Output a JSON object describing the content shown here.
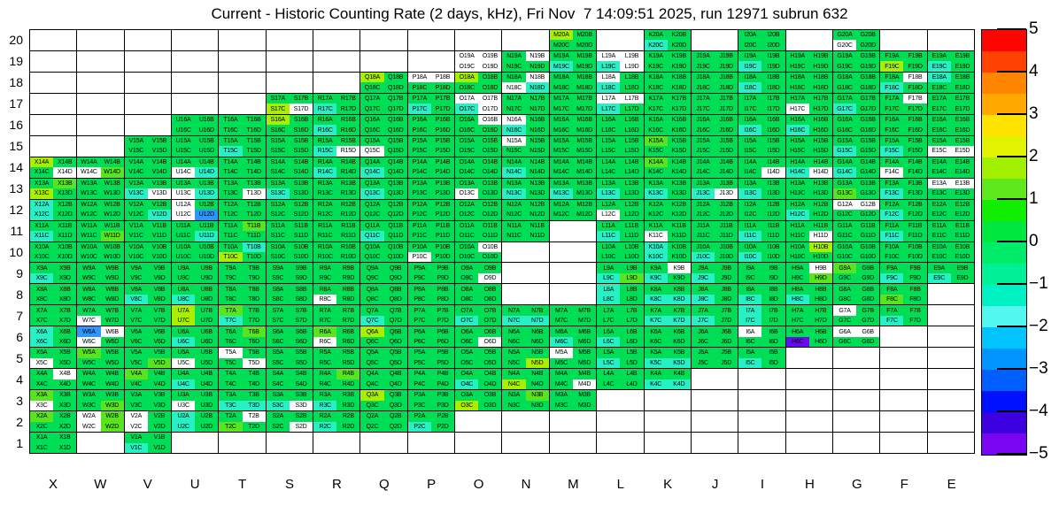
{
  "title": "Current - Historic Counting Rate (2 days, kHz), Fri Nov  7 14:09:51 2025, run 12971 subrun 632",
  "chart_data": {
    "type": "heatmap",
    "title": "Current - Historic Counting Rate (2 days, kHz), Fri Nov  7 14:09:51 2025, run 12971 subrun 632",
    "x_labels": [
      "X",
      "W",
      "V",
      "U",
      "T",
      "S",
      "R",
      "Q",
      "P",
      "O",
      "N",
      "M",
      "L",
      "K",
      "J",
      "I",
      "H",
      "G",
      "F",
      "E"
    ],
    "y_labels": [
      20,
      19,
      18,
      17,
      16,
      15,
      14,
      13,
      12,
      11,
      10,
      9,
      8,
      7,
      6,
      5,
      4,
      3,
      2,
      1
    ],
    "subcell_letters": [
      "A",
      "B",
      "C",
      "D"
    ],
    "grid_on": true,
    "legend_position": "right",
    "value_scale": {
      "min": -5,
      "max": 5,
      "tick_labels": [
        "5",
        "4",
        "3",
        "2",
        "1",
        "0",
        "−1",
        "−2",
        "−3",
        "−4",
        "−5"
      ]
    },
    "colorbar_colors": [
      "#FF0400",
      "#FF4200",
      "#FF8500",
      "#FFA800",
      "#FFE300",
      "#E2F200",
      "#A2F000",
      "#5FE81C",
      "#12EE00",
      "#00E740",
      "#00EB69",
      "#00F095",
      "#00F2C4",
      "#52F7F0",
      "#00C3FF",
      "#0095FF",
      "#0060FF",
      "#0011FF",
      "#3D00E0",
      "#7A05F2"
    ],
    "palette": {
      "G": "#00DE55",
      "L": "#58E51F",
      "Y": "#A9F000",
      "C": "#27F1C4",
      "N": "#2E97FF",
      "P": "#6A0AF0",
      "W": "#FFFFFF"
    },
    "palette_approx_values": {
      "G": 0,
      "L": 1,
      "Y": 2,
      "C": -1.5,
      "N": -3,
      "P": -4.5,
      "W": null
    },
    "rows": [
      {
        "y": 20,
        "cells": [
          "",
          "",
          "",
          "",
          "",
          "",
          "",
          "",
          "",
          "",
          "",
          "YGGG",
          "",
          "GGCG",
          "",
          "GGGG",
          "",
          "GGWG",
          "",
          ""
        ]
      },
      {
        "y": 19,
        "cells": [
          "",
          "",
          "",
          "",
          "",
          "",
          "",
          "",
          "",
          "WWWW",
          "GWGG",
          "GGCG",
          "WWCW",
          "GGGG",
          "GGGG",
          "GGCG",
          "GGGG",
          "GGGG",
          "GGYG",
          "GGCG"
        ]
      },
      {
        "y": 18,
        "cells": [
          "",
          "",
          "",
          "",
          "",
          "",
          "",
          "YGGG",
          "WWGG",
          "YGGG",
          "GWWC",
          "GGGG",
          "WGCG",
          "GGGG",
          "GGGG",
          "GGCG",
          "GGGG",
          "GGGG",
          "GWCG",
          "CGGG"
        ]
      },
      {
        "y": 17,
        "cells": [
          "",
          "",
          "",
          "",
          "",
          "GGYW",
          "GGCG",
          "GGGG",
          "GGCG",
          "WWCW",
          "GGGG",
          "GGGG",
          "WWCG",
          "GGGG",
          "GGGG",
          "GGGG",
          "GGWG",
          "GGCG",
          "GWGG",
          "GGGG"
        ]
      },
      {
        "y": 16,
        "cells": [
          "",
          "",
          "",
          "GGGG",
          "GGGG",
          "YGGG",
          "GGCG",
          "GGGG",
          "GGGG",
          "GWGG",
          "WGCG",
          "GGGG",
          "GGGG",
          "GGGG",
          "GGGG",
          "GGCG",
          "GGCG",
          "GGGG",
          "GGGG",
          "GGGG"
        ]
      },
      {
        "y": 15,
        "cells": [
          "",
          "",
          "GGGG",
          "GGGG",
          "GGCG",
          "GGGG",
          "GGCW",
          "GGWG",
          "GGGG",
          "GGGG",
          "WGGG",
          "GGGG",
          "GGGG",
          "LGGG",
          "GGGG",
          "GGGG",
          "GGGG",
          "GGCG",
          "GGCG",
          "GGWW"
        ]
      },
      {
        "y": 14,
        "cells": [
          "YGGW",
          "GGWL",
          "GGGG",
          "GGWC",
          "GGGG",
          "GGGG",
          "GGCG",
          "GGCG",
          "GGGG",
          "GGGG",
          "GGCG",
          "GGGG",
          "GGGG",
          "LGGG",
          "GGGG",
          "GGGW",
          "GGCW",
          "GGCG",
          "GGWG",
          "GGGG"
        ]
      },
      {
        "y": 13,
        "cells": [
          "GLYG",
          "GGGG",
          "GGCW",
          "GGWC",
          "GGGW",
          "GGCG",
          "GGGG",
          "GGCG",
          "GGGG",
          "GGWG",
          "GGCG",
          "GGCG",
          "GGCG",
          "GGCG",
          "GGCW",
          "GGCG",
          "GGGG",
          "GGLG",
          "GGCG",
          "WWGG"
        ]
      },
      {
        "y": 12,
        "cells": [
          "CGCG",
          "GGGG",
          "GGGC",
          "WGWN",
          "GGGG",
          "GGGG",
          "GGGG",
          "GGGG",
          "GGGG",
          "GGGG",
          "GGGG",
          "GGGG",
          "GGWG",
          "GGGG",
          "GGGG",
          "GGGG",
          "GGCG",
          "WWGG",
          "GGCG",
          "GGGG"
        ]
      },
      {
        "y": 11,
        "cells": [
          "GGCG",
          "GGGL",
          "GGGG",
          "GGGC",
          "GLGG",
          "GGGG",
          "GGGG",
          "GGCG",
          "GGGG",
          "GGGG",
          "GGGG",
          "",
          "GGCG",
          "GGWG",
          "GGGG",
          "GGCG",
          "GGGW",
          "GGGG",
          "GGCG",
          "GGGG"
        ]
      },
      {
        "y": 10,
        "cells": [
          "GGGG",
          "GGGG",
          "GGGG",
          "GGGG",
          "GCYG",
          "GGGG",
          "GGGG",
          "GGGG",
          "GGWG",
          "GWGG",
          "",
          "",
          "GGGG",
          "CGCG",
          "GGCG",
          "GGCG",
          "GYGG",
          "GGGG",
          "GGGG",
          "GGGG"
        ]
      },
      {
        "y": 9,
        "cells": [
          "GGCG",
          "GGGG",
          "GGGG",
          "GGGG",
          "GGGG",
          "GGGG",
          "GGGG",
          "GGGG",
          "GGGG",
          "GGGW",
          "",
          "",
          "GGCL",
          "GWCG",
          "GGCG",
          "GGGG",
          "GWGL",
          "LGGG",
          "GGCG",
          "GGCG"
        ]
      },
      {
        "y": 8,
        "cells": [
          "GGGG",
          "GGGG",
          "GGCG",
          "GGCG",
          "GGGG",
          "GGGG",
          "GGWG",
          "GGGG",
          "GGGG",
          "GGGG",
          "",
          "",
          "CGCG",
          "GGCC",
          "GGCG",
          "GGCG",
          "GGCG",
          "GGGG",
          "GGLG",
          ""
        ]
      },
      {
        "y": 7,
        "cells": [
          "GGGG",
          "GGWG",
          "GGGG",
          "YGYG",
          "LGCG",
          "GGGG",
          "GGGG",
          "GGCG",
          "GGGG",
          "GGCG",
          "GGCC",
          "GGGG",
          "GGGG",
          "GGCC",
          "GGCG",
          "CGCG",
          "GGGG",
          "WGGG",
          "GGCG",
          ""
        ]
      },
      {
        "y": 6,
        "cells": [
          "CGCG",
          "NWWG",
          "GGGG",
          "GGCG",
          "GLGG",
          "GGGG",
          "LGWG",
          "YGGG",
          "GGGG",
          "GGGW",
          "GGGG",
          "GGCG",
          "GGCG",
          "GGGG",
          "GGGG",
          "WGGG",
          "GGPG",
          "WWGG",
          "",
          ""
        ]
      },
      {
        "y": 5,
        "cells": [
          "GGWG",
          "LGGG",
          "GGGL",
          "GGWG",
          "WGGW",
          "GGGG",
          "GGGG",
          "GGGG",
          "GGGG",
          "GGGG",
          "GGGY",
          "WGGG",
          "GGCG",
          "GGCC",
          "GGGG",
          "GGCG",
          "",
          "",
          "",
          ""
        ]
      },
      {
        "y": 4,
        "cells": [
          "GWGG",
          "GGGG",
          "LGGG",
          "GGCG",
          "GGGG",
          "GGGG",
          "GLGG",
          "GGGG",
          "GGGG",
          "GGCG",
          "GGYG",
          "GGGW",
          "GGGG",
          "GGCC",
          "",
          "",
          "",
          "",
          "",
          ""
        ]
      },
      {
        "y": 3,
        "cells": [
          "LGWG",
          "GGGL",
          "GGGG",
          "GGWG",
          "GGCC",
          "GGCW",
          "GGCG",
          "YGGG",
          "GGGG",
          "GGYG",
          "GLGG",
          "GGGG",
          "",
          "",
          "",
          "",
          "",
          "",
          "",
          ""
        ]
      },
      {
        "y": 2,
        "cells": [
          "LGGG",
          "WLWL",
          "WGWG",
          "CGCG",
          "GWLG",
          "GGGW",
          "GGCG",
          "GGGG",
          "GGCG",
          "",
          "",
          "",
          "",
          "",
          "",
          "",
          "",
          "",
          "",
          ""
        ]
      },
      {
        "y": 1,
        "cells": [
          "GGGG",
          "",
          "GGCG",
          "",
          "",
          "",
          "",
          "",
          "",
          "",
          "",
          "",
          "",
          "",
          "",
          "",
          "",
          "",
          "",
          ""
        ]
      }
    ]
  }
}
